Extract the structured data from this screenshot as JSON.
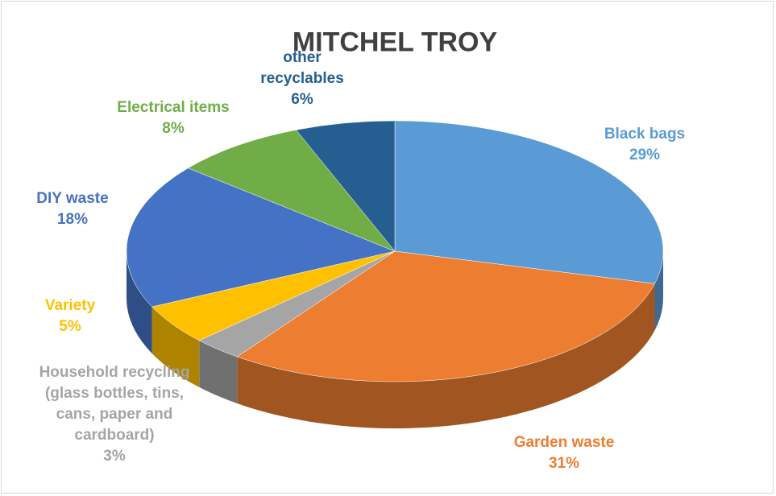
{
  "chart_data": {
    "type": "pie",
    "title": "MITCHEL TROY",
    "categories": [
      "Black bags",
      "Garden waste",
      "Household recycling (glass bottles, tins, cans, paper and cardboard)",
      "Variety",
      "DIY waste",
      "Electrical items",
      "other recyclables"
    ],
    "values": [
      29,
      31,
      3,
      5,
      18,
      8,
      6
    ],
    "value_labels": [
      "29%",
      "31%",
      "3%",
      "5%",
      "18%",
      "8%",
      "6%"
    ],
    "colors": [
      "#5b9bd5",
      "#ed7d31",
      "#a5a5a5",
      "#ffc000",
      "#4472c4",
      "#70ad47",
      "#255e91"
    ]
  }
}
